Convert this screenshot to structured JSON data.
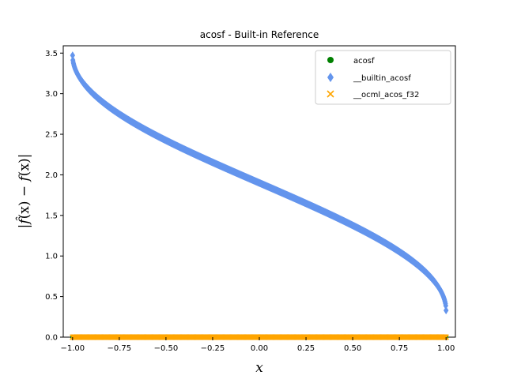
{
  "chart_data": {
    "type": "scatter",
    "title": "acosf - Built-in Reference",
    "xlabel": "x",
    "ylabel_parts": [
      "|",
      "f̂",
      "(x) − ",
      "f",
      "(x)|"
    ],
    "xlim": [
      -1.05,
      1.05
    ],
    "ylim": [
      0.0,
      3.59
    ],
    "x_ticks": [
      -1.0,
      -0.75,
      -0.5,
      -0.25,
      0.0,
      0.25,
      0.5,
      0.75,
      1.0
    ],
    "x_tick_labels": [
      "−1.00",
      "−0.75",
      "−0.50",
      "−0.25",
      "0.00",
      "0.25",
      "0.50",
      "0.75",
      "1.00"
    ],
    "y_ticks": [
      0.0,
      0.5,
      1.0,
      1.5,
      2.0,
      2.5,
      3.0,
      3.5
    ],
    "y_tick_labels": [
      "0.0",
      "0.5",
      "1.0",
      "1.5",
      "2.0",
      "2.5",
      "3.0",
      "3.5"
    ],
    "grid": false,
    "legend_position": "top-right",
    "series": [
      {
        "name": "acosf",
        "marker": "circle",
        "color": "#008000",
        "function": "zero",
        "x_range": [
          -1.0,
          1.0
        ]
      },
      {
        "name": "__builtin_acosf",
        "marker": "diamond",
        "color": "#6495ED",
        "function": "arccos_plus_0.33",
        "x_range": [
          -1.0,
          1.0
        ]
      },
      {
        "name": "__ocml_acos_f32",
        "marker": "x",
        "color": "#FFA500",
        "function": "zero",
        "x_range": [
          -1.0,
          1.0
        ]
      }
    ]
  }
}
